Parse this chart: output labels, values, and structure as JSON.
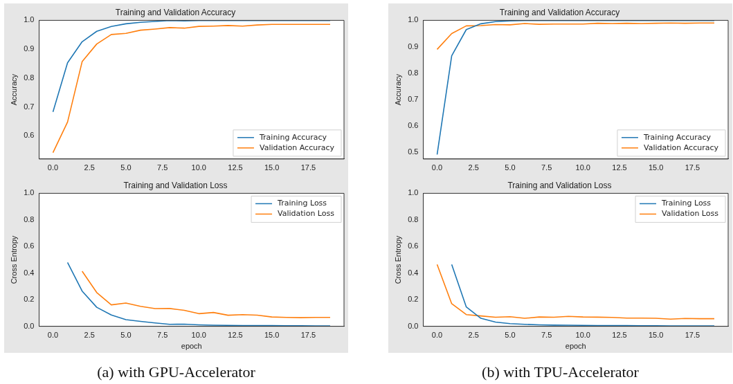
{
  "chart_data": [
    {
      "type": "line",
      "title": "Training and Validation Accuracy",
      "ylabel": "Accuracy",
      "x": [
        0,
        1,
        2,
        3,
        4,
        5,
        6,
        7,
        8,
        9,
        10,
        11,
        12,
        13,
        14,
        15,
        16,
        17,
        18,
        19
      ],
      "xlim": [
        -0.95,
        19.95
      ],
      "xticks": [
        {
          "value": 0,
          "label": "0.0"
        },
        {
          "value": 2.5,
          "label": "2.5"
        },
        {
          "value": 5,
          "label": "5.0"
        },
        {
          "value": 7.5,
          "label": "7.5"
        },
        {
          "value": 10,
          "label": "10.0"
        },
        {
          "value": 12.5,
          "label": "12.5"
        },
        {
          "value": 15,
          "label": "15.0"
        },
        {
          "value": 17.5,
          "label": "17.5"
        }
      ],
      "ylim": [
        0.52,
        1.0
      ],
      "yticks": [
        {
          "value": 0.6,
          "label": "0.6"
        },
        {
          "value": 0.7,
          "label": "0.7"
        },
        {
          "value": 0.8,
          "label": "0.8"
        },
        {
          "value": 0.9,
          "label": "0.9"
        },
        {
          "value": 1.0,
          "label": "1.0"
        }
      ],
      "legend": "bottom right",
      "series": [
        {
          "name": "Training Accuracy",
          "color": "#1f77b4",
          "values": [
            0.683,
            0.853,
            0.926,
            0.962,
            0.979,
            0.988,
            0.993,
            0.996,
            0.999,
            0.998,
            0.999,
            0.999,
            0.999,
            0.999,
            0.999,
            0.999,
            0.999,
            0.999,
            0.999,
            0.999
          ]
        },
        {
          "name": "Validation Accuracy",
          "color": "#ff7f0e",
          "values": [
            0.542,
            0.648,
            0.857,
            0.918,
            0.951,
            0.955,
            0.966,
            0.97,
            0.975,
            0.973,
            0.979,
            0.98,
            0.982,
            0.98,
            0.984,
            0.986,
            0.986,
            0.986,
            0.986,
            0.986
          ]
        }
      ]
    },
    {
      "type": "line",
      "title": "Training and Validation Loss",
      "xlabel": "epoch",
      "ylabel": "Cross Entropy",
      "xlim": [
        -0.95,
        19.95
      ],
      "xticks": [
        {
          "value": 0,
          "label": "0.0"
        },
        {
          "value": 2.5,
          "label": "2.5"
        },
        {
          "value": 5,
          "label": "5.0"
        },
        {
          "value": 7.5,
          "label": "7.5"
        },
        {
          "value": 10,
          "label": "10.0"
        },
        {
          "value": 12.5,
          "label": "12.5"
        },
        {
          "value": 15,
          "label": "15.0"
        },
        {
          "value": 17.5,
          "label": "17.5"
        }
      ],
      "ylim": [
        0,
        1.0
      ],
      "yticks": [
        {
          "value": 0,
          "label": "0.0"
        },
        {
          "value": 0.2,
          "label": "0.2"
        },
        {
          "value": 0.4,
          "label": "0.4"
        },
        {
          "value": 0.6,
          "label": "0.6"
        },
        {
          "value": 0.8,
          "label": "0.8"
        },
        {
          "value": 1.0,
          "label": "1.0"
        }
      ],
      "legend": "top right",
      "annotations": [
        "(a) with GPU-Accelerator"
      ],
      "series": [
        {
          "name": "Training Loss",
          "color": "#1f77b4",
          "x": [
            1,
            2,
            3,
            4,
            5,
            6,
            7,
            8,
            9,
            10,
            11,
            12,
            13,
            14,
            15,
            16,
            17,
            18,
            19
          ],
          "values": [
            0.48,
            0.265,
            0.143,
            0.085,
            0.05,
            0.037,
            0.025,
            0.015,
            0.016,
            0.011,
            0.008,
            0.007,
            0.006,
            0.005,
            0.005,
            0.004,
            0.004,
            0.003,
            0.003
          ]
        },
        {
          "name": "Validation Loss",
          "color": "#ff7f0e",
          "x": [
            2,
            3,
            4,
            5,
            6,
            7,
            8,
            9,
            10,
            11,
            12,
            13,
            14,
            15,
            16,
            17,
            18,
            19
          ],
          "values": [
            0.414,
            0.254,
            0.161,
            0.175,
            0.15,
            0.133,
            0.134,
            0.12,
            0.095,
            0.104,
            0.083,
            0.088,
            0.084,
            0.07,
            0.067,
            0.065,
            0.067,
            0.067
          ]
        }
      ]
    },
    {
      "type": "line",
      "title": "Training and Validation Accuracy",
      "ylabel": "Accuracy",
      "x": [
        0,
        1,
        2,
        3,
        4,
        5,
        6,
        7,
        8,
        9,
        10,
        11,
        12,
        13,
        14,
        15,
        16,
        17,
        18,
        19
      ],
      "xlim": [
        -0.95,
        19.95
      ],
      "xticks": [
        {
          "value": 0,
          "label": "0.0"
        },
        {
          "value": 2.5,
          "label": "2.5"
        },
        {
          "value": 5,
          "label": "5.0"
        },
        {
          "value": 7.5,
          "label": "7.5"
        },
        {
          "value": 10,
          "label": "10.0"
        },
        {
          "value": 12.5,
          "label": "12.5"
        },
        {
          "value": 15,
          "label": "15.0"
        },
        {
          "value": 17.5,
          "label": "17.5"
        }
      ],
      "ylim": [
        0.475,
        1.0
      ],
      "yticks": [
        {
          "value": 0.5,
          "label": "0.5"
        },
        {
          "value": 0.6,
          "label": "0.6"
        },
        {
          "value": 0.7,
          "label": "0.7"
        },
        {
          "value": 0.8,
          "label": "0.8"
        },
        {
          "value": 0.9,
          "label": "0.9"
        },
        {
          "value": 1.0,
          "label": "1.0"
        }
      ],
      "legend": "bottom right",
      "series": [
        {
          "name": "Training Accuracy",
          "color": "#1f77b4",
          "values": [
            0.492,
            0.866,
            0.965,
            0.987,
            0.995,
            0.998,
            0.999,
            0.999,
            0.999,
            0.999,
            0.999,
            0.999,
            0.999,
            0.999,
            0.999,
            0.999,
            0.999,
            0.999,
            0.999,
            0.999
          ]
        },
        {
          "name": "Validation Accuracy",
          "color": "#ff7f0e",
          "values": [
            0.89,
            0.95,
            0.979,
            0.98,
            0.984,
            0.983,
            0.988,
            0.985,
            0.986,
            0.986,
            0.986,
            0.989,
            0.988,
            0.989,
            0.988,
            0.989,
            0.99,
            0.989,
            0.99,
            0.99
          ]
        }
      ]
    },
    {
      "type": "line",
      "title": "Training and Validation Loss",
      "xlabel": "epoch",
      "ylabel": "Cross Entropy",
      "x": [
        0,
        1,
        2,
        3,
        4,
        5,
        6,
        7,
        8,
        9,
        10,
        11,
        12,
        13,
        14,
        15,
        16,
        17,
        18,
        19
      ],
      "xlim": [
        -0.95,
        19.95
      ],
      "xticks": [
        {
          "value": 0,
          "label": "0.0"
        },
        {
          "value": 2.5,
          "label": "2.5"
        },
        {
          "value": 5,
          "label": "5.0"
        },
        {
          "value": 7.5,
          "label": "7.5"
        },
        {
          "value": 10,
          "label": "10.0"
        },
        {
          "value": 12.5,
          "label": "12.5"
        },
        {
          "value": 15,
          "label": "15.0"
        },
        {
          "value": 17.5,
          "label": "17.5"
        }
      ],
      "ylim": [
        0,
        1.0
      ],
      "yticks": [
        {
          "value": 0,
          "label": "0.0"
        },
        {
          "value": 0.2,
          "label": "0.2"
        },
        {
          "value": 0.4,
          "label": "0.4"
        },
        {
          "value": 0.6,
          "label": "0.6"
        },
        {
          "value": 0.8,
          "label": "0.8"
        },
        {
          "value": 1.0,
          "label": "1.0"
        }
      ],
      "legend": "top right",
      "annotations": [
        "(b) with TPU-Accelerator"
      ],
      "series": [
        {
          "name": "Training Loss",
          "color": "#1f77b4",
          "values": [
            null,
            0.465,
            0.145,
            0.06,
            0.032,
            0.02,
            0.015,
            0.011,
            0.009,
            0.008,
            0.007,
            0.006,
            0.005,
            0.005,
            0.004,
            0.004,
            0.003,
            0.003,
            0.003,
            0.003
          ]
        },
        {
          "name": "Validation Loss",
          "color": "#ff7f0e",
          "values": [
            0.465,
            0.17,
            0.088,
            0.078,
            0.068,
            0.072,
            0.06,
            0.07,
            0.068,
            0.075,
            0.07,
            0.069,
            0.067,
            0.062,
            0.062,
            0.06,
            0.054,
            0.059,
            0.057,
            0.057
          ]
        }
      ]
    }
  ]
}
